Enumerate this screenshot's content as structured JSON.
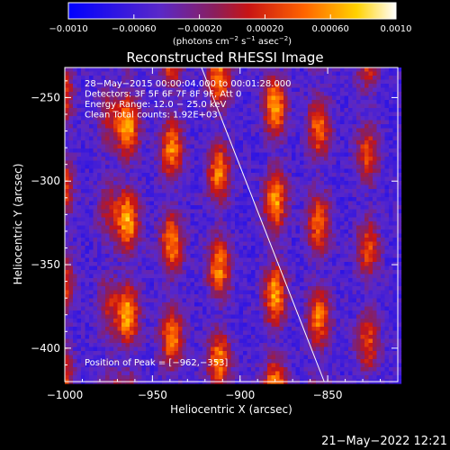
{
  "chart_data": {
    "type": "heatmap",
    "title": "Reconstructed RHESSI Image",
    "colorbar": {
      "min": -0.001,
      "max": 0.001,
      "ticks": [
        "−0.0010",
        "−0.00060",
        "−0.00020",
        "0.00020",
        "0.00060",
        "0.0010"
      ],
      "tick_values": [
        -0.001,
        -0.0006,
        -0.0002,
        0.0002,
        0.0006,
        0.001
      ],
      "unit_label": {
        "pre": "(photons cm",
        "exp1": "−2",
        "mid1": " s",
        "exp2": "−1",
        "mid2": " asec",
        "exp3": "−2",
        "post": ")"
      },
      "colormap": "blue-purple-red-yellow-white"
    },
    "xlabel": "Heliocentric X (arcsec)",
    "ylabel": "Heliocentric Y (arcsec)",
    "xlim": [
      -1000,
      -810
    ],
    "ylim": [
      -420,
      -232
    ],
    "xticks": [
      -1000,
      -950,
      -900,
      -850
    ],
    "xtick_labels": [
      "−1000",
      "−950",
      "−900",
      "−850"
    ],
    "yticks": [
      -250,
      -300,
      -350,
      -400
    ],
    "ytick_labels": [
      "−250",
      "−300",
      "−350",
      "−400"
    ],
    "annotations": [
      "28−May−2015 00:00:04.000 to 00:01:28.000",
      "Detectors: 3F 5F 6F 7F 8F 9F, Att 0",
      "Energy Range: 12.0 − 25.0 keV",
      "Clean    Total counts: 1.92E+03"
    ],
    "peak_label": "Position of Peak = [−962,−353]",
    "peak": [
      -962,
      -353
    ],
    "limb_line": [
      [
        -922,
        -232
      ],
      [
        -852,
        -420
      ]
    ],
    "stripes": [
      {
        "x": -1002,
        "amp": 0.0008
      },
      {
        "x": -975,
        "amp": 0.00045
      },
      {
        "x": -964,
        "amp": 0.001
      },
      {
        "x": -939,
        "amp": 0.0009
      },
      {
        "x": -912,
        "amp": 0.0009
      },
      {
        "x": -880,
        "amp": 0.001
      },
      {
        "x": -855,
        "amp": 0.00085
      },
      {
        "x": -827,
        "amp": 0.0007
      }
    ],
    "grid": false
  },
  "footer": {
    "timestamp": "21−May−2022 12:21"
  }
}
